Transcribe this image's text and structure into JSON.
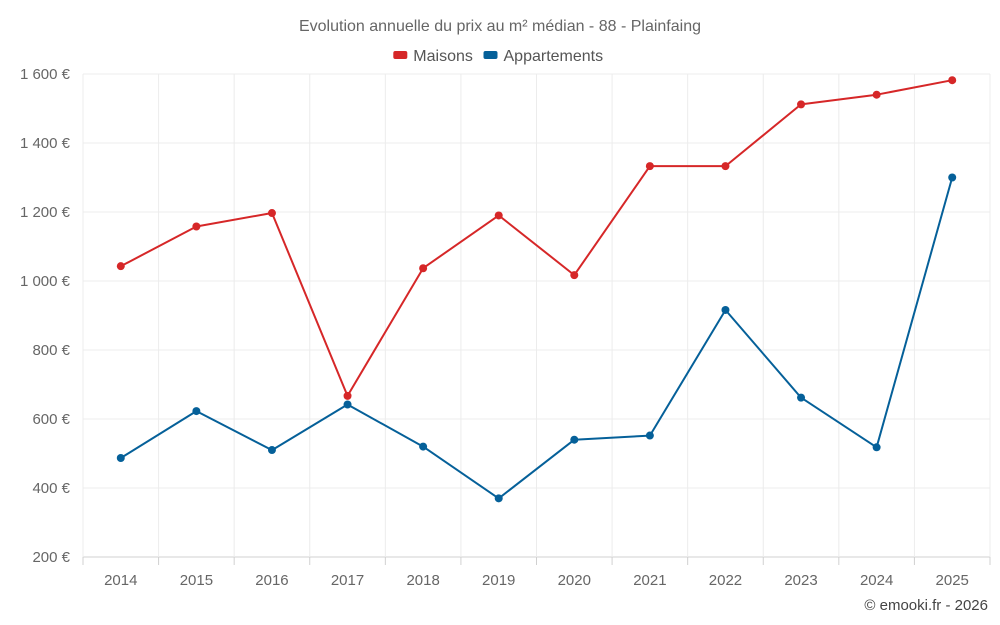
{
  "chart_data": {
    "type": "line",
    "title": "Evolution annuelle du prix au m² médian - 88 - Plainfaing",
    "categories": [
      "2014",
      "2015",
      "2016",
      "2017",
      "2018",
      "2019",
      "2020",
      "2021",
      "2022",
      "2023",
      "2024",
      "2025"
    ],
    "series": [
      {
        "name": "Maisons",
        "color": "#d62728",
        "values": [
          1043,
          1158,
          1197,
          667,
          1037,
          1190,
          1017,
          1333,
          1333,
          1512,
          1540,
          1582
        ]
      },
      {
        "name": "Appartements",
        "color": "#056099",
        "values": [
          487,
          623,
          510,
          642,
          520,
          370,
          540,
          552,
          916,
          662,
          518,
          1300
        ]
      }
    ],
    "ylim": [
      200,
      1600
    ],
    "yticks": [
      200,
      400,
      600,
      800,
      1000,
      1200,
      1400,
      1600
    ],
    "ytick_labels": [
      "200 €",
      "400 €",
      "600 €",
      "800 €",
      "1 000 €",
      "1 200 €",
      "1 400 €",
      "1 600 €"
    ],
    "xlabel": "",
    "ylabel": "",
    "grid": true,
    "legend_position": "top-center"
  },
  "footer": {
    "copyright": "© emooki.fr - 2026"
  }
}
